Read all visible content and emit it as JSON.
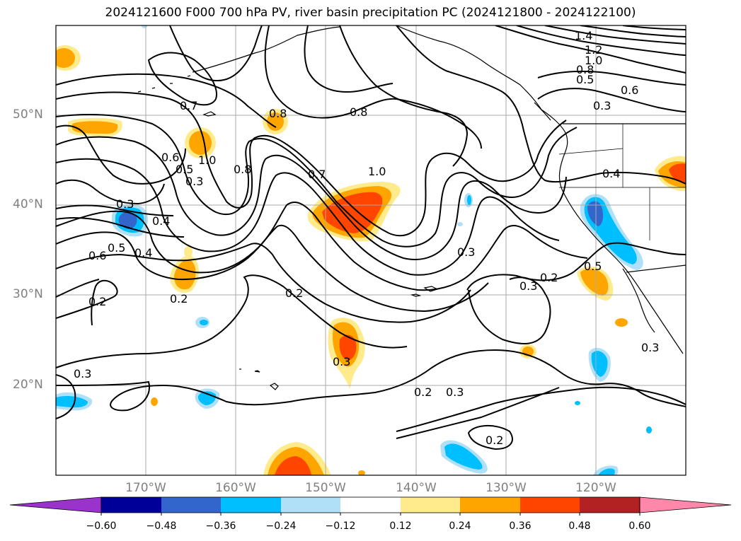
{
  "title": "2024121600 F000 700 hPa PV, river basin precipitation PC (2024121800 - 2024122100)",
  "map": {
    "projection": "equirectangular",
    "lon_range": [
      -180,
      -110
    ],
    "lat_range": [
      10,
      60
    ],
    "background": "#ffffff",
    "gridlines": true,
    "lat_labels": [
      "50°N",
      "40°N",
      "30°N",
      "20°N"
    ],
    "lon_labels": [
      "170°W",
      "160°W",
      "150°W",
      "140°W",
      "130°W",
      "120°W"
    ],
    "contour_labels": [
      "1.4",
      "1.2",
      "1.0",
      "0.8",
      "0.5",
      "0.6",
      "0.3",
      "0.7",
      "0.8",
      "0.8",
      "1.0",
      "0.8",
      "0.6",
      "0.5",
      "0.3",
      "0.7",
      "1.0",
      "0.4",
      "0.3",
      "0.4",
      "0.6",
      "0.5",
      "0.4",
      "0.2",
      "0.2",
      "0.2",
      "0.3",
      "0.2",
      "0.3",
      "0.3",
      "0.2",
      "0.2",
      "0.3",
      "0.3",
      "0.5",
      "0.3"
    ]
  },
  "colorbar": {
    "ticks": [
      "−0.60",
      "−0.48",
      "−0.36",
      "−0.24",
      "−0.12",
      "0.12",
      "0.24",
      "0.36",
      "0.48",
      "0.60"
    ],
    "colors": [
      "#9933cc",
      "#000099",
      "#3366cc",
      "#00bfff",
      "#b0e0f8",
      "#ffffff",
      "#ffea8c",
      "#ffa500",
      "#ff4500",
      "#b22222",
      "#ff88aa"
    ],
    "extend": "both"
  }
}
